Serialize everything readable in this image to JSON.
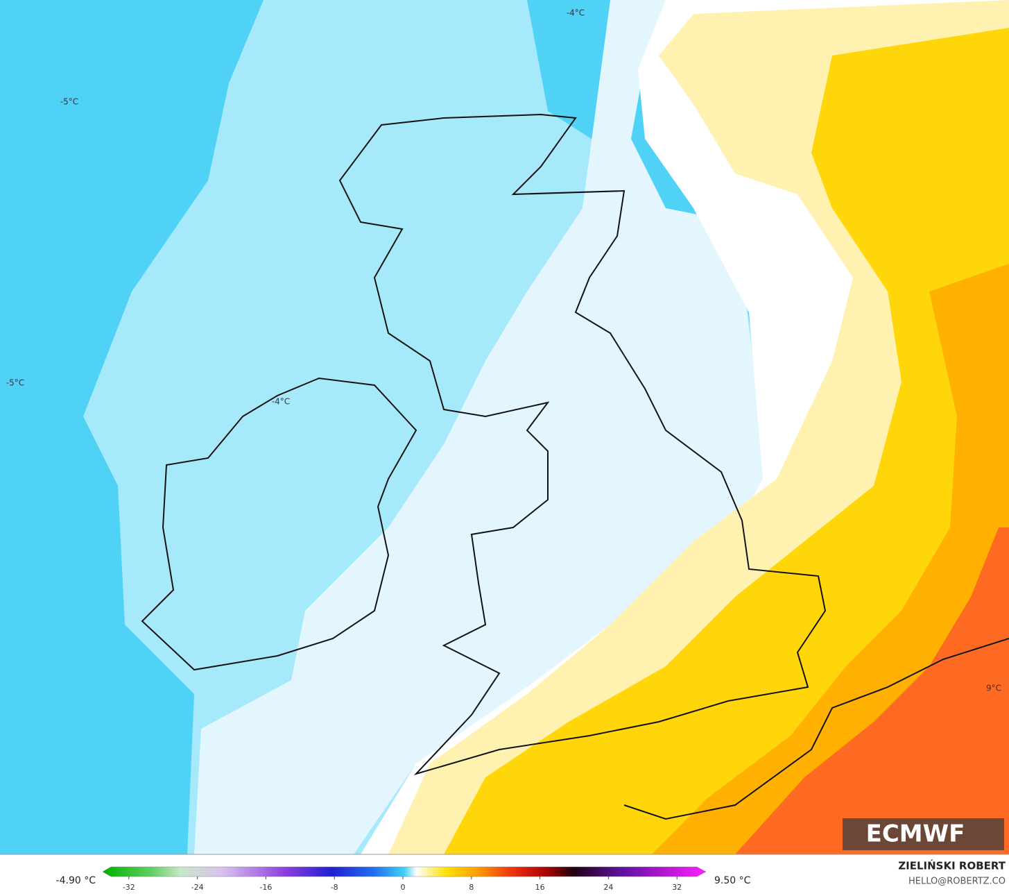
{
  "map": {
    "labels": [
      "-4°C",
      "-5°C",
      "-5°C",
      "-4°C",
      "9°C"
    ]
  },
  "logo": "ECMWF",
  "legend": {
    "min_label": "-4.90 °C",
    "max_label": "9.50 °C",
    "ticks": [
      -32,
      -24,
      -16,
      -8,
      0,
      8,
      16,
      24,
      32
    ]
  },
  "credit": {
    "author": "ZIELIŃSKI ROBERT",
    "contact": "HELLO@ROBERTZ.CO"
  }
}
